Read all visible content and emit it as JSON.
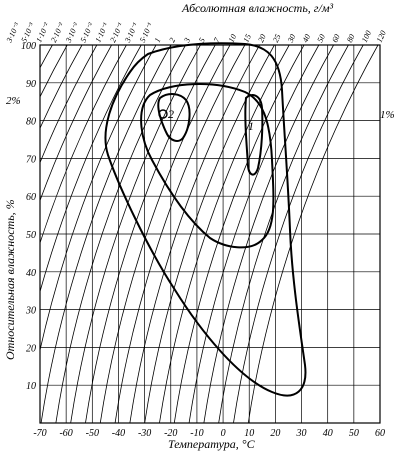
{
  "top_title": "Абсолютная влажность, г/м³",
  "x_axis_label": "Температура, °C",
  "y_axis_label": "Относительная влажность, %",
  "x_ticks": [
    "-70",
    "-60",
    "-50",
    "-40",
    "-30",
    "-20",
    "-10",
    "0",
    "10",
    "20",
    "30",
    "40",
    "50",
    "60"
  ],
  "y_ticks": [
    "10",
    "20",
    "30",
    "40",
    "50",
    "60",
    "70",
    "80",
    "90",
    "100"
  ],
  "abs_humidity_ticks": [
    "3·10⁻³",
    "5·10⁻³",
    "1·10⁻²",
    "2·10⁻²",
    "3·10⁻²",
    "5·10⁻²",
    "1·10⁻¹",
    "2·10⁻¹",
    "3·10⁻¹",
    "5·10⁻¹",
    "1",
    "2",
    "3",
    "5",
    "7",
    "10",
    "15",
    "20",
    "25",
    "30",
    "40",
    "50",
    "60",
    "80",
    "100",
    "120"
  ],
  "left_side_label": "2%",
  "right_side_label": "1%",
  "region_label_1": "1",
  "region_label_2": "2"
}
